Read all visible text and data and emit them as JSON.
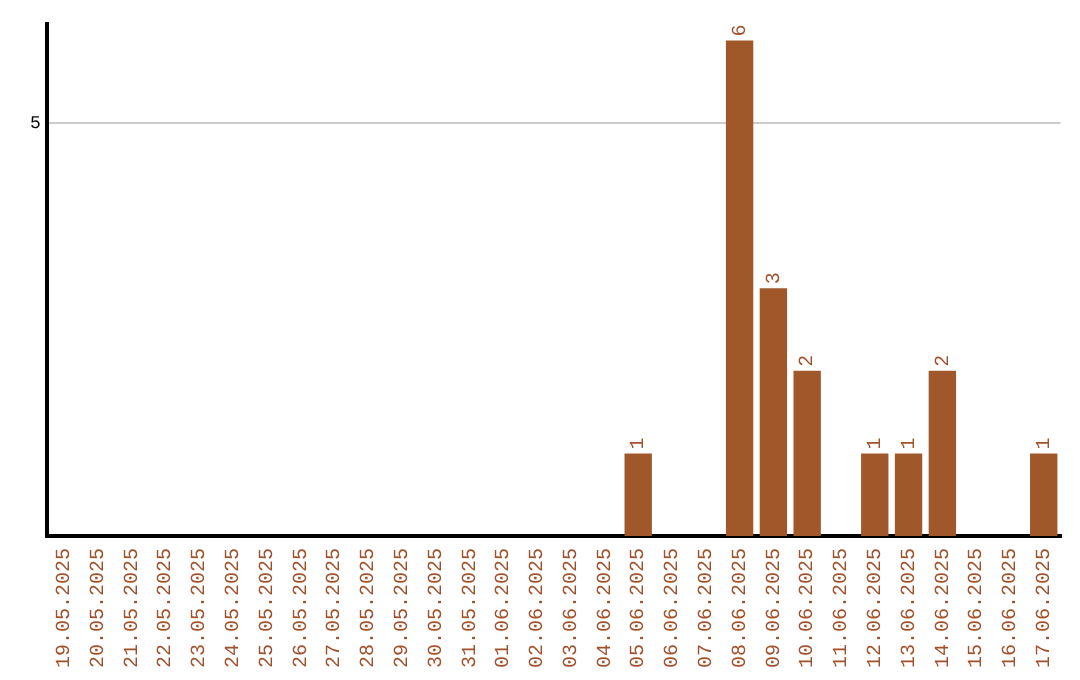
{
  "chart_data": {
    "type": "bar",
    "categories": [
      "19.05.2025",
      "20.05.2025",
      "21.05.2025",
      "22.05.2025",
      "23.05.2025",
      "24.05.2025",
      "25.05.2025",
      "26.05.2025",
      "27.05.2025",
      "28.05.2025",
      "29.05.2025",
      "30.05.2025",
      "31.05.2025",
      "01.06.2025",
      "02.06.2025",
      "03.06.2025",
      "04.06.2025",
      "05.06.2025",
      "06.06.2025",
      "07.06.2025",
      "08.06.2025",
      "09.06.2025",
      "10.06.2025",
      "11.06.2025",
      "12.06.2025",
      "13.06.2025",
      "14.06.2025",
      "15.06.2025",
      "16.06.2025",
      "17.06.2025"
    ],
    "values": [
      null,
      null,
      null,
      null,
      null,
      null,
      null,
      null,
      null,
      null,
      null,
      null,
      null,
      null,
      null,
      null,
      null,
      1,
      null,
      null,
      6,
      3,
      2,
      null,
      1,
      1,
      2,
      null,
      null,
      1
    ],
    "data_labels": true,
    "legend": false,
    "color": "#a0582a",
    "ylim": [
      0,
      6.2
    ],
    "yticks": [
      5
    ],
    "grid": "y"
  }
}
